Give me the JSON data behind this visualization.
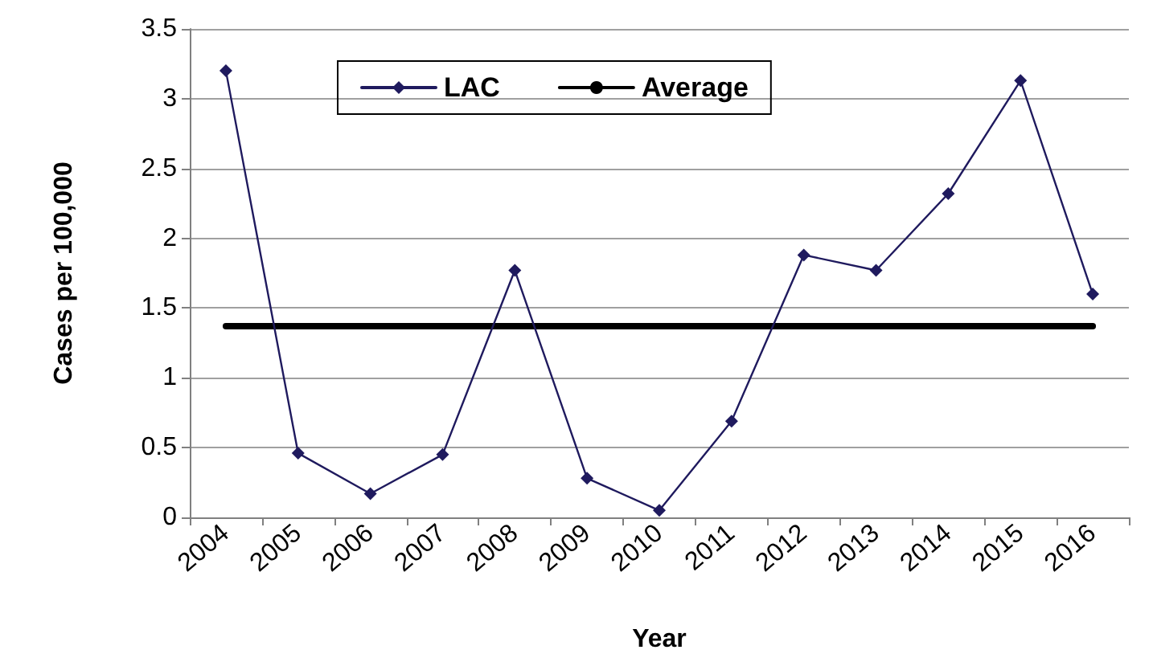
{
  "chart_data": {
    "type": "line",
    "xlabel": "Year",
    "ylabel": "Cases per 100,000",
    "categories": [
      "2004",
      "2005",
      "2006",
      "2007",
      "2008",
      "2009",
      "2010",
      "2011",
      "2012",
      "2013",
      "2014",
      "2015",
      "2016"
    ],
    "series": [
      {
        "name": "LAC",
        "color": "#1f1a5e",
        "values": [
          3.2,
          0.46,
          0.17,
          0.45,
          1.77,
          0.28,
          0.05,
          0.69,
          1.88,
          1.77,
          2.32,
          3.13,
          1.6
        ]
      },
      {
        "name": "Average",
        "color": "#000000",
        "marker": "none",
        "values": [
          1.37,
          1.37,
          1.37,
          1.37,
          1.37,
          1.37,
          1.37,
          1.37,
          1.37,
          1.37,
          1.37,
          1.37,
          1.37
        ]
      }
    ],
    "ylim": [
      0,
      3.5
    ],
    "yticks": [
      0,
      0.5,
      1,
      1.5,
      2,
      2.5,
      3,
      3.5
    ],
    "grid": "y",
    "legend": "top",
    "marker": "diamond"
  }
}
